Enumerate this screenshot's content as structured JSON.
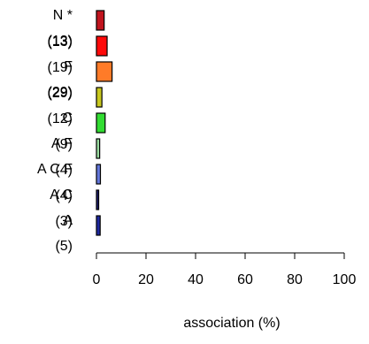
{
  "chart_data": {
    "type": "bar",
    "orientation": "horizontal",
    "xlabel": "association (%)",
    "xlim": [
      0,
      100
    ],
    "xticks": [
      0,
      20,
      40,
      60,
      80,
      100
    ],
    "categories": [
      "N *",
      "(13)",
      "F (19)",
      "(29)",
      "C (12)",
      "A F (9)",
      "A C F (4)",
      "A C (4)",
      "A (3)",
      "(5)"
    ],
    "bars": [
      {
        "value": 3.1,
        "color": "#c0141e"
      },
      {
        "value": 4.3,
        "color": "#ff0a0a"
      },
      {
        "value": 6.3,
        "color": "#ff7b28"
      },
      {
        "value": 2.2,
        "color": "#c8c81e"
      },
      {
        "value": 3.5,
        "color": "#32dc32"
      },
      {
        "value": 1.3,
        "color": "#9adca0"
      },
      {
        "value": 1.6,
        "color": "#6478dc"
      },
      {
        "value": 0.9,
        "color": "#1e1e6e"
      },
      {
        "value": 1.5,
        "color": "#1e28a0"
      }
    ],
    "label_rows": [
      [
        "N *"
      ],
      [
        "(13)",
        "(13)"
      ],
      [
        "F",
        "(19)"
      ],
      [
        "(29)",
        "(29)"
      ],
      [
        "C",
        "(12)"
      ],
      [
        "A F",
        "(9)"
      ],
      [
        "A C F",
        "(4)"
      ],
      [
        "A C",
        "(4)"
      ],
      [
        "A",
        "(3)"
      ],
      [
        "(5)"
      ]
    ]
  }
}
